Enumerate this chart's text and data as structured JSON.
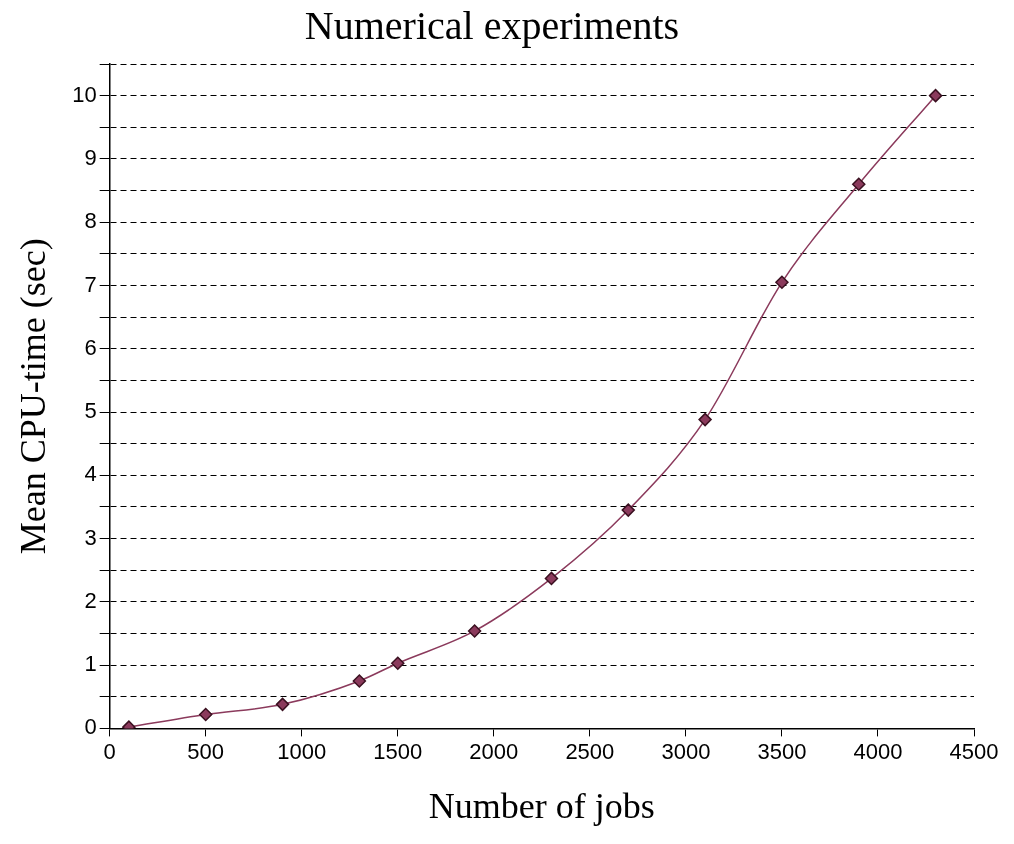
{
  "chart_data": {
    "type": "line",
    "title": "Numerical experiments",
    "xlabel": "Number of jobs",
    "ylabel": "Mean CPU-time (sec)",
    "x": [
      100,
      500,
      900,
      1300,
      1500,
      1900,
      2300,
      2700,
      3100,
      3500,
      3900,
      4300
    ],
    "series": [
      {
        "color": "#8b3a5c",
        "values": [
          0.02,
          0.22,
          0.38,
          0.75,
          1.03,
          1.54,
          2.37,
          3.45,
          4.88,
          7.05,
          8.6,
          10
        ]
      }
    ],
    "xlim": [
      0,
      4500
    ],
    "xticks": [
      0,
      500,
      1000,
      1500,
      2000,
      2500,
      3000,
      3500,
      4000,
      4500
    ],
    "ylim": [
      0,
      10.5
    ],
    "yticks": [
      0,
      {
        "value": 0.5,
        "label": null
      },
      1,
      {
        "value": 1.5,
        "label": null
      },
      2,
      {
        "value": 2.5,
        "label": null
      },
      3,
      {
        "value": 3.5,
        "label": null
      },
      4,
      {
        "value": 4.5,
        "label": null
      },
      5,
      {
        "value": 5.5,
        "label": null
      },
      6,
      {
        "value": 6.5,
        "label": null
      },
      7,
      {
        "value": 7.5,
        "label": null
      },
      8,
      {
        "value": 8.5,
        "label": null
      },
      9,
      {
        "value": 9.5,
        "label": null
      },
      10,
      {
        "value": 10.5,
        "label": null
      }
    ],
    "grid": "y",
    "legend": false,
    "marker": "diamond",
    "line_style": "solid"
  }
}
